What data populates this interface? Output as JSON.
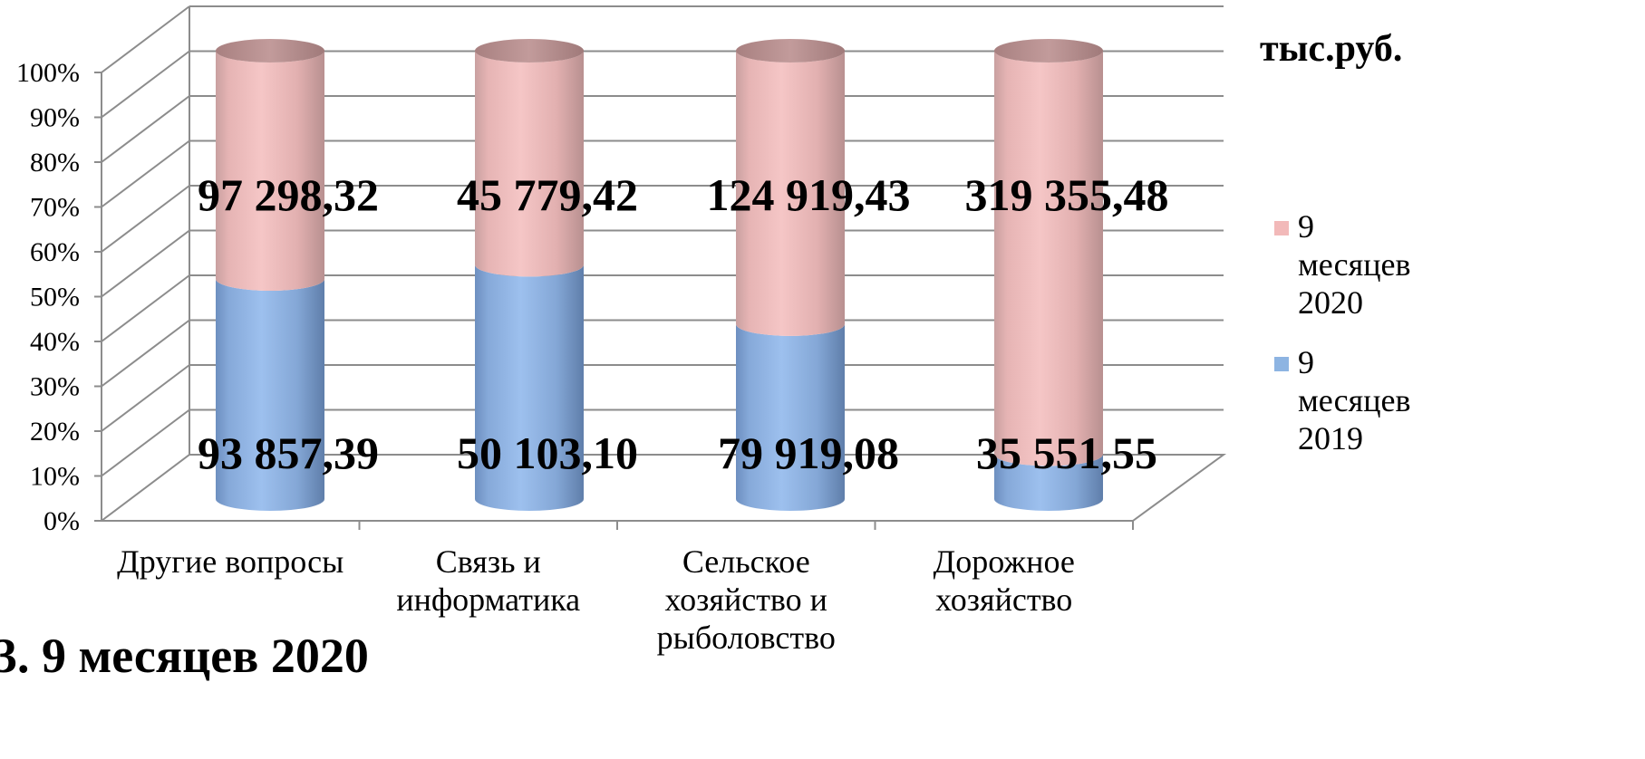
{
  "chart_data": {
    "type": "bar",
    "stacked": "percent",
    "style": "3d-cylinder",
    "unit_label": "тыс.руб.",
    "categories": [
      [
        "Другие вопросы"
      ],
      [
        "Связь и",
        "информатика"
      ],
      [
        "Сельское",
        "хозяйство и",
        "рыболовство"
      ],
      [
        "Дорожное",
        "хозяйство"
      ]
    ],
    "series": [
      {
        "name": [
          "9",
          "месяцев",
          "2019"
        ],
        "color": "#8db4e2",
        "values": [
          93857.39,
          50103.1,
          79919.08,
          35551.55
        ],
        "labels": [
          "93 857,39",
          "50 103,10",
          "79 919,08",
          "35 551,55"
        ]
      },
      {
        "name": [
          "9",
          "месяцев",
          "2020"
        ],
        "color": "#f2b9b9",
        "values": [
          97298.32,
          45779.42,
          124919.43,
          319355.48
        ],
        "labels": [
          "97 298,32",
          "45 779,42",
          "124 919,43",
          "319 355,48"
        ]
      }
    ],
    "y_ticks": [
      "0%",
      "10%",
      "20%",
      "30%",
      "40%",
      "50%",
      "60%",
      "70%",
      "80%",
      "90%",
      "100%"
    ],
    "ylim": [
      0,
      100
    ],
    "grid": true,
    "legend_position": "right"
  },
  "footer": {
    "partial_text": "3. 9 месяцев 2020"
  }
}
